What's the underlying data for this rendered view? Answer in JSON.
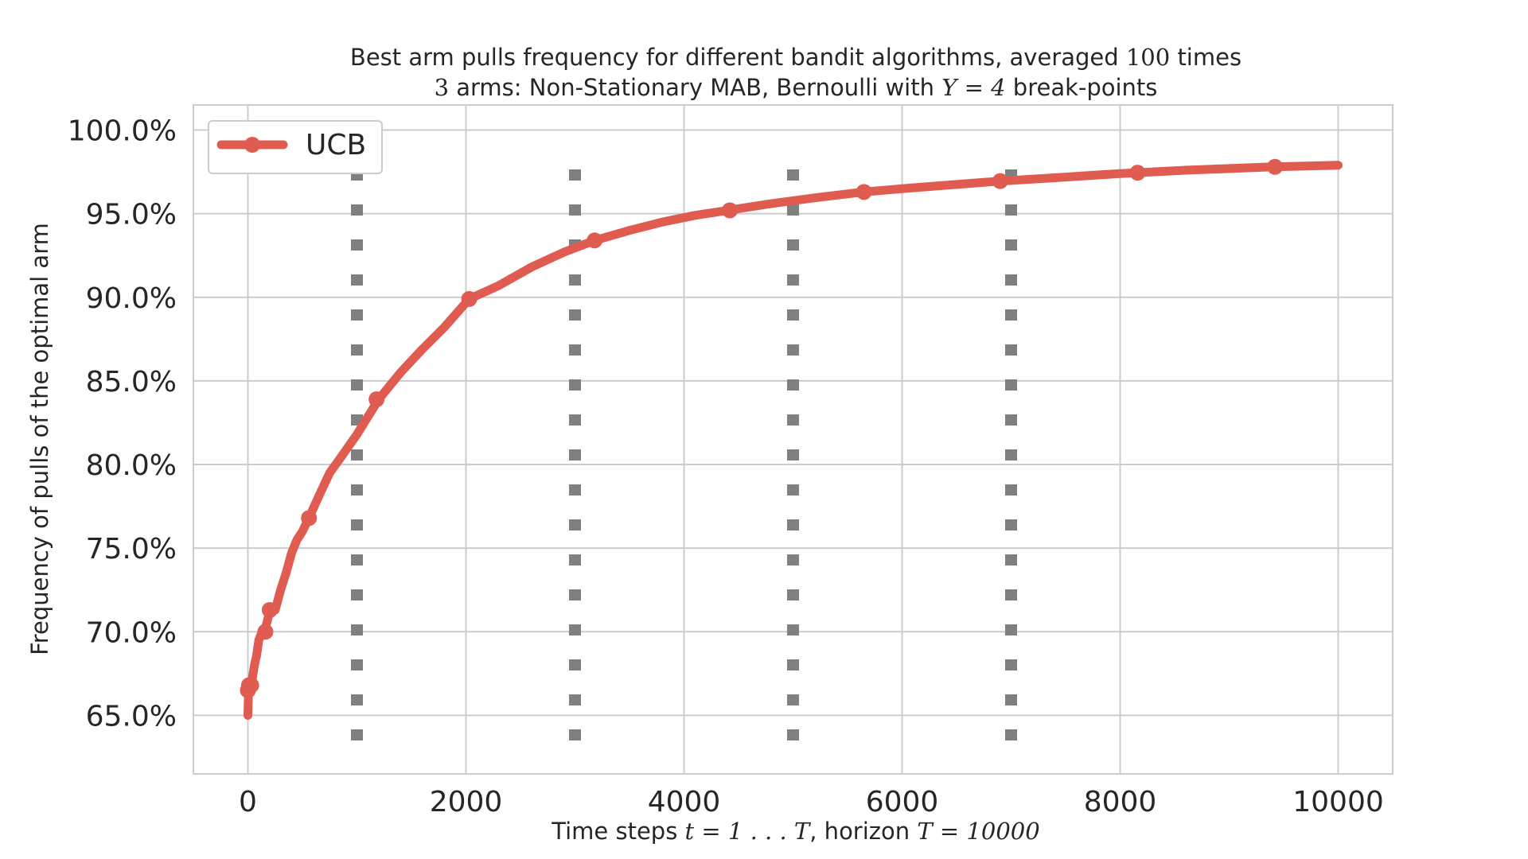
{
  "chart_data": {
    "type": "line",
    "title_line1": "Best arm pulls frequency for different bandit algorithms, averaged",
    "title_line1_num": "100",
    "title_line1_end": "times",
    "title_line2_num": "3",
    "title_line2_mid": "arms: Non-Stationary MAB, Bernoulli with",
    "title_line2_math": "Υ = 4",
    "title_line2_end": "break-points",
    "xlabel_prefix": "Time steps",
    "xlabel_math1": "t = 1 . . . T",
    "xlabel_mid": ", horizon",
    "xlabel_math2": "T = 10000",
    "ylabel": "Frequency of pulls of the optimal arm",
    "xlim": [
      -500,
      10500
    ],
    "ylim": [
      61.5,
      101.5
    ],
    "xticks": [
      0,
      2000,
      4000,
      6000,
      8000,
      10000
    ],
    "xtick_labels": [
      "0",
      "2000",
      "4000",
      "6000",
      "8000",
      "10000"
    ],
    "yticks": [
      65,
      70,
      75,
      80,
      85,
      90,
      95,
      100
    ],
    "ytick_labels": [
      "65.0%",
      "70.0%",
      "75.0%",
      "80.0%",
      "85.0%",
      "90.0%",
      "95.0%",
      "100.0%"
    ],
    "grid": true,
    "legend_position": "top-left",
    "breakpoints": [
      1000,
      3000,
      5000,
      7000
    ],
    "breakpoint_range": [
      63.5,
      98.5
    ],
    "breakpoint_color": "#808080",
    "series": [
      {
        "name": "UCB",
        "color": "#e05b50",
        "x": [
          0,
          5,
          10,
          20,
          30,
          40,
          60,
          80,
          100,
          130,
          160,
          200,
          250,
          300,
          350,
          400,
          450,
          500,
          560,
          650,
          750,
          850,
          1000,
          1200,
          1400,
          1600,
          1800,
          2030,
          2300,
          2600,
          2900,
          3180,
          3500,
          3800,
          4100,
          4400,
          4800,
          5200,
          5650,
          6100,
          6500,
          6900,
          7400,
          8000,
          8600,
          9400,
          10000
        ],
        "y": [
          65.0,
          66.3,
          66.8,
          67.0,
          66.8,
          67.2,
          68.0,
          68.6,
          69.5,
          70.0,
          70.2,
          71.2,
          71.3,
          72.5,
          73.5,
          74.7,
          75.5,
          76.0,
          76.8,
          78.1,
          79.5,
          80.4,
          81.8,
          83.9,
          85.5,
          86.9,
          88.2,
          89.9,
          90.7,
          91.8,
          92.7,
          93.4,
          94.0,
          94.5,
          94.9,
          95.2,
          95.6,
          95.95,
          96.3,
          96.55,
          96.75,
          96.95,
          97.15,
          97.4,
          97.6,
          97.8,
          97.9
        ],
        "markers_x": [
          0,
          10,
          30,
          160,
          200,
          560,
          1180,
          2030,
          3180,
          4420,
          5650,
          6900,
          8160,
          9420
        ],
        "markers_y": [
          66.5,
          66.8,
          66.8,
          70.0,
          71.3,
          76.8,
          83.9,
          89.9,
          93.4,
          95.2,
          96.3,
          96.95,
          97.45,
          97.8
        ]
      }
    ]
  }
}
